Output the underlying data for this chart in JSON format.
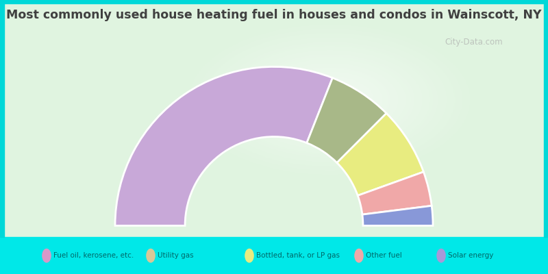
{
  "title": "Most commonly used house heating fuel in houses and condos in Wainscott, NY",
  "segments": [
    {
      "label": "Fuel oil, kerosene, etc.",
      "value": 62,
      "color": "#c8a8d8"
    },
    {
      "label": "Utility gas",
      "value": 13,
      "color": "#a8b888"
    },
    {
      "label": "Bottled, tank, or LP gas",
      "value": 14,
      "color": "#e8ec80"
    },
    {
      "label": "Other fuel",
      "value": 7,
      "color": "#f0a8a8"
    },
    {
      "label": "Solar energy",
      "value": 4,
      "color": "#8898d8"
    }
  ],
  "legend_items": [
    {
      "label": "Fuel oil, kerosene, etc.",
      "color": "#d898c8"
    },
    {
      "label": "Utility gas",
      "color": "#d8c898"
    },
    {
      "label": "Bottled, tank, or LP gas",
      "color": "#e8ec80"
    },
    {
      "label": "Other fuel",
      "color": "#f0a8a8"
    },
    {
      "label": "Solar energy",
      "color": "#a898d8"
    }
  ],
  "title_color": "#404040",
  "legend_text_color": "#006868",
  "bg_color_top": "#e8f8e8",
  "bg_color_mid": "#d8f0d8",
  "bottom_color": "#00e8e8",
  "border_color": "#00d8d8",
  "watermark": "City-Data.com",
  "outer_r": 1.0,
  "inner_r": 0.56
}
